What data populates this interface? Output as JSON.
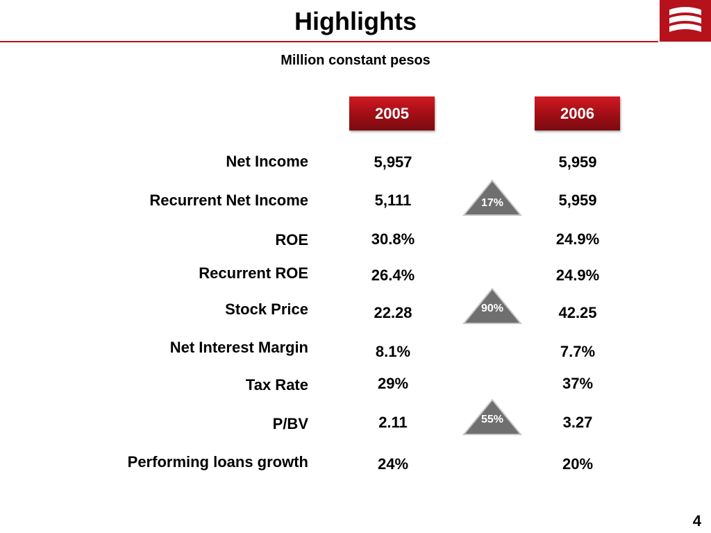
{
  "title": "Highlights",
  "subtitle": "Million constant pesos",
  "years": [
    "2005",
    "2006"
  ],
  "rows": [
    {
      "label": "Net Income",
      "v2005": "5,957",
      "v2006": "5,959"
    },
    {
      "label": "Recurrent Net Income",
      "v2005": "5,111",
      "v2006": "5,959"
    },
    {
      "label": "ROE",
      "v2005": "30.8%",
      "v2006": "24.9%"
    },
    {
      "label": "Recurrent ROE",
      "v2005": "26.4%",
      "v2006": "24.9%"
    },
    {
      "label": "Stock Price",
      "v2005": "22.28",
      "v2006": "42.25"
    },
    {
      "label": "Net Interest Margin",
      "v2005": "8.1%",
      "v2006": "7.7%"
    },
    {
      "label": "Tax Rate",
      "v2005": "29%",
      "v2006": "37%"
    },
    {
      "label": "P/BV",
      "v2005": "2.11",
      "v2006": "3.27"
    },
    {
      "label": "Performing loans growth",
      "v2005": "24%",
      "v2006": "20%"
    }
  ],
  "badges": [
    "17%",
    "90%",
    "55%"
  ],
  "page_number": "4",
  "colors": {
    "brand_red": "#b5121b",
    "badge_gray": "#6f6f6f"
  },
  "icons": {
    "logo": "bank-logo-icon",
    "badge": "up-triangle-icon"
  }
}
